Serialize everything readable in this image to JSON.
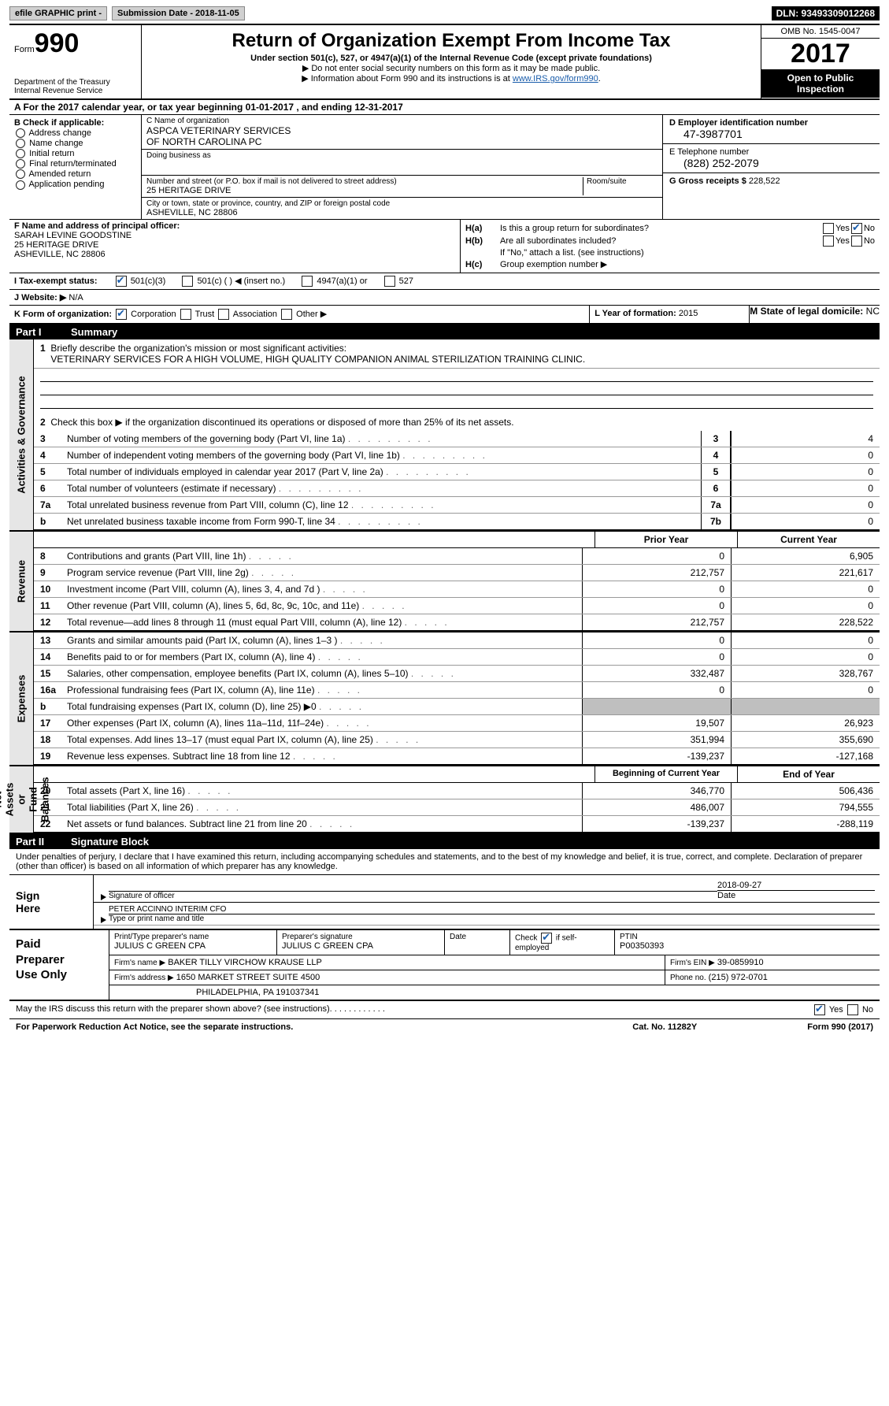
{
  "topbar": {
    "efile": "efile GRAPHIC print -",
    "sub": "Submission Date - 2018-11-05",
    "dln": "DLN: 93493309012268"
  },
  "header": {
    "form_prefix": "Form",
    "form_no": "990",
    "dept": "Department of the Treasury\nInternal Revenue Service",
    "title": "Return of Organization Exempt From Income Tax",
    "sub": "Under section 501(c), 527, or 4947(a)(1) of the Internal Revenue Code (except private foundations)",
    "note1": "▶ Do not enter social security numbers on this form as it may be made public.",
    "note2": "▶ Information about Form 990 and its instructions is at ",
    "link": "www.IRS.gov/form990",
    "omb": "OMB No. 1545-0047",
    "year": "2017",
    "open": "Open to Public Inspection"
  },
  "a": {
    "text": "A  For the 2017 calendar year, or tax year beginning 01-01-2017   , and ending 12-31-2017"
  },
  "b": {
    "hdr": "B Check if applicable:",
    "items": [
      "Address change",
      "Name change",
      "Initial return",
      "Final return/terminated",
      "Amended return",
      "Application pending"
    ]
  },
  "c": {
    "name_lbl": "C Name of organization",
    "name": "ASPCA VETERINARY SERVICES\nOF NORTH CAROLINA PC",
    "dba_lbl": "Doing business as",
    "dba": "",
    "street_lbl": "Number and street (or P.O. box if mail is not delivered to street address)",
    "room_lbl": "Room/suite",
    "street": "25 HERITAGE DRIVE",
    "city_lbl": "City or town, state or province, country, and ZIP or foreign postal code",
    "city": "ASHEVILLE, NC  28806"
  },
  "d": {
    "lbl": "D Employer identification number",
    "val": "47-3987701"
  },
  "e": {
    "lbl": "E Telephone number",
    "val": "(828) 252-2079"
  },
  "g": {
    "lbl": "G Gross receipts $",
    "val": "228,522"
  },
  "f": {
    "lbl": "F  Name and address of principal officer:",
    "name": "SARAH LEVINE GOODSTINE",
    "addr1": "25 HERITAGE DRIVE",
    "addr2": "ASHEVILLE, NC  28806"
  },
  "h": {
    "a_lbl": "H(a)",
    "a_txt": "Is this a group return for subordinates?",
    "yes": "Yes",
    "no": "No",
    "b_lbl": "H(b)",
    "b_txt": "Are all subordinates included?",
    "b_note": "If \"No,\" attach a list. (see instructions)",
    "c_lbl": "H(c)",
    "c_txt": "Group exemption number ▶"
  },
  "i": {
    "lbl": "I  Tax-exempt status:",
    "o1": "501(c)(3)",
    "o2": "501(c) (  )",
    "o2b": "◀ (insert no.)",
    "o3": "4947(a)(1) or",
    "o4": "527"
  },
  "j": {
    "lbl": "J  Website: ▶",
    "val": "N/A"
  },
  "k": {
    "lbl": "K Form of organization:",
    "o1": "Corporation",
    "o2": "Trust",
    "o3": "Association",
    "o4": "Other ▶"
  },
  "l": {
    "lbl": "L Year of formation:",
    "val": "2015"
  },
  "m": {
    "lbl": "M State of legal domicile:",
    "val": "NC"
  },
  "part1": {
    "pn": "Part I",
    "title": "Summary"
  },
  "p1": {
    "l1": "Briefly describe the organization's mission or most significant activities:",
    "mission": "VETERINARY SERVICES FOR A HIGH VOLUME, HIGH QUALITY COMPANION ANIMAL STERILIZATION TRAINING CLINIC.",
    "l2": "Check this box ▶      if the organization discontinued its operations or disposed of more than 25% of its net assets.",
    "rows": [
      {
        "n": "3",
        "d": "Number of voting members of the governing body (Part VI, line 1a)",
        "box": "3",
        "v": "4"
      },
      {
        "n": "4",
        "d": "Number of independent voting members of the governing body (Part VI, line 1b)",
        "box": "4",
        "v": "0"
      },
      {
        "n": "5",
        "d": "Total number of individuals employed in calendar year 2017 (Part V, line 2a)",
        "box": "5",
        "v": "0"
      },
      {
        "n": "6",
        "d": "Total number of volunteers (estimate if necessary)",
        "box": "6",
        "v": "0"
      },
      {
        "n": "7a",
        "d": "Total unrelated business revenue from Part VIII, column (C), line 12",
        "box": "7a",
        "v": "0"
      },
      {
        "n": "b",
        "d": "Net unrelated business taxable income from Form 990-T, line 34",
        "box": "7b",
        "v": "0"
      }
    ]
  },
  "cols": {
    "py": "Prior Year",
    "cy": "Current Year",
    "bcy": "Beginning of Current Year",
    "eoy": "End of Year"
  },
  "rev": {
    "label": "Revenue",
    "rows": [
      {
        "n": "8",
        "d": "Contributions and grants (Part VIII, line 1h)",
        "py": "0",
        "cy": "6,905"
      },
      {
        "n": "9",
        "d": "Program service revenue (Part VIII, line 2g)",
        "py": "212,757",
        "cy": "221,617"
      },
      {
        "n": "10",
        "d": "Investment income (Part VIII, column (A), lines 3, 4, and 7d )",
        "py": "0",
        "cy": "0"
      },
      {
        "n": "11",
        "d": "Other revenue (Part VIII, column (A), lines 5, 6d, 8c, 9c, 10c, and 11e)",
        "py": "0",
        "cy": "0"
      },
      {
        "n": "12",
        "d": "Total revenue—add lines 8 through 11 (must equal Part VIII, column (A), line 12)",
        "py": "212,757",
        "cy": "228,522"
      }
    ]
  },
  "exp": {
    "label": "Expenses",
    "rows": [
      {
        "n": "13",
        "d": "Grants and similar amounts paid (Part IX, column (A), lines 1–3 )",
        "py": "0",
        "cy": "0"
      },
      {
        "n": "14",
        "d": "Benefits paid to or for members (Part IX, column (A), line 4)",
        "py": "0",
        "cy": "0"
      },
      {
        "n": "15",
        "d": "Salaries, other compensation, employee benefits (Part IX, column (A), lines 5–10)",
        "py": "332,487",
        "cy": "328,767"
      },
      {
        "n": "16a",
        "d": "Professional fundraising fees (Part IX, column (A), line 11e)",
        "py": "0",
        "cy": "0"
      },
      {
        "n": "b",
        "d": "Total fundraising expenses (Part IX, column (D), line 25) ▶0",
        "py": "",
        "cy": "",
        "grey": true
      },
      {
        "n": "17",
        "d": "Other expenses (Part IX, column (A), lines 11a–11d, 11f–24e)",
        "py": "19,507",
        "cy": "26,923"
      },
      {
        "n": "18",
        "d": "Total expenses. Add lines 13–17 (must equal Part IX, column (A), line 25)",
        "py": "351,994",
        "cy": "355,690"
      },
      {
        "n": "19",
        "d": "Revenue less expenses. Subtract line 18 from line 12",
        "py": "-139,237",
        "cy": "-127,168"
      }
    ]
  },
  "na": {
    "label": "Net Assets or\nFund Balances",
    "rows": [
      {
        "n": "20",
        "d": "Total assets (Part X, line 16)",
        "py": "346,770",
        "cy": "506,436"
      },
      {
        "n": "21",
        "d": "Total liabilities (Part X, line 26)",
        "py": "486,007",
        "cy": "794,555"
      },
      {
        "n": "22",
        "d": "Net assets or fund balances. Subtract line 21 from line 20",
        "py": "-139,237",
        "cy": "-288,119"
      }
    ]
  },
  "part2": {
    "pn": "Part II",
    "title": "Signature Block"
  },
  "sig": {
    "para": "Under penalties of perjury, I declare that I have examined this return, including accompanying schedules and statements, and to the best of my knowledge and belief, it is true, correct, and complete. Declaration of preparer (other than officer) is based on all information of which preparer has any knowledge.",
    "here": "Sign\nHere",
    "sig_officer": "Signature of officer",
    "date": "2018-09-27",
    "date_lbl": "Date",
    "name": "PETER ACCINNO  INTERIM CFO",
    "name_lbl": "Type or print name and title"
  },
  "prep": {
    "lbl": "Paid\nPreparer\nUse Only",
    "r1": {
      "a": "Print/Type preparer's name",
      "av": "JULIUS C GREEN CPA",
      "b": "Preparer's signature",
      "bv": "JULIUS C GREEN CPA",
      "c": "Date",
      "d": "Check       if self-employed",
      "e": "PTIN",
      "ev": "P00350393"
    },
    "r2": {
      "a": "Firm's name      ▶",
      "av": "BAKER TILLY VIRCHOW KRAUSE LLP",
      "b": "Firm's EIN ▶",
      "bv": "39-0859910"
    },
    "r3": {
      "a": "Firm's address ▶",
      "av": "1650 MARKET STREET SUITE 4500",
      "b": "Phone no.",
      "bv": "(215) 972-0701"
    },
    "r4": {
      "av": "PHILADELPHIA, PA  191037341"
    }
  },
  "footer": {
    "q": "May the IRS discuss this return with the preparer shown above? (see instructions)",
    "yes": "Yes",
    "no": "No",
    "pra": "For Paperwork Reduction Act Notice, see the separate instructions.",
    "cat": "Cat. No. 11282Y",
    "form": "Form 990 (2017)"
  },
  "sides": {
    "ag": "Activities & Governance"
  }
}
